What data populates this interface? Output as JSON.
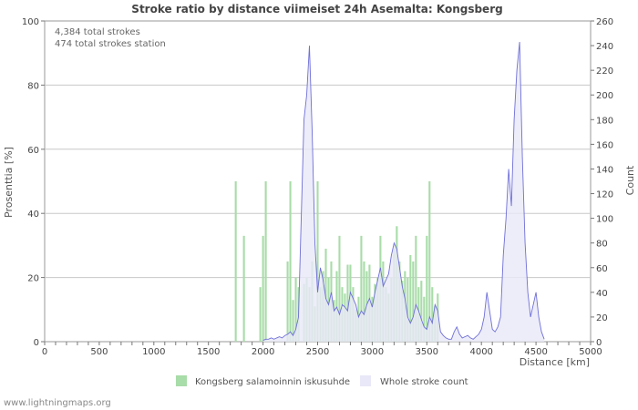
{
  "chart_data": {
    "type": "bar",
    "title": "Stroke ratio by distance viimeiset 24h Asemalta: Kongsberg",
    "info_lines": [
      "4,384 total strokes",
      "474 total strokes station"
    ],
    "xlabel": "Distance   [km]",
    "ylabel_left": "Prosenttia   [%]",
    "ylabel_right": "Count",
    "xlim": [
      0,
      5000
    ],
    "ylim_left": [
      0,
      100
    ],
    "ylim_right": [
      0,
      260
    ],
    "x_ticks": [
      0,
      500,
      1000,
      1500,
      2000,
      2500,
      3000,
      3500,
      4000,
      4500,
      5000
    ],
    "y_ticks_left": [
      0,
      20,
      40,
      60,
      80,
      100
    ],
    "y_ticks_right": [
      0,
      20,
      40,
      60,
      80,
      100,
      120,
      140,
      160,
      180,
      200,
      220,
      240,
      260
    ],
    "bin_width_km": 25,
    "series": [
      {
        "name": "Kongsberg salamoinnin iskusuhde",
        "axis": "left",
        "kind": "bar",
        "color": "#a8dca8",
        "x": [
          1750,
          1825,
          1975,
          2000,
          2025,
          2225,
          2250,
          2275,
          2300,
          2325,
          2375,
          2400,
          2425,
          2450,
          2475,
          2500,
          2525,
          2550,
          2575,
          2600,
          2625,
          2650,
          2675,
          2700,
          2725,
          2750,
          2775,
          2800,
          2825,
          2850,
          2875,
          2900,
          2925,
          2950,
          2975,
          3000,
          3025,
          3050,
          3075,
          3100,
          3125,
          3150,
          3175,
          3200,
          3225,
          3250,
          3275,
          3300,
          3325,
          3350,
          3375,
          3400,
          3425,
          3450,
          3475,
          3500,
          3525,
          3550,
          3575,
          3600
        ],
        "values": [
          50,
          33,
          17,
          33,
          50,
          25,
          50,
          13,
          20,
          17,
          18,
          20,
          17,
          25,
          11,
          50,
          17,
          22,
          29,
          20,
          25,
          13,
          22,
          33,
          17,
          15,
          24,
          24,
          17,
          10,
          14,
          33,
          25,
          22,
          24,
          14,
          18,
          20,
          33,
          25,
          17,
          15,
          20,
          29,
          36,
          25,
          19,
          22,
          20,
          27,
          25,
          33,
          17,
          19,
          14,
          33,
          50,
          17,
          11,
          15
        ]
      },
      {
        "name": "Whole stroke count",
        "axis": "right",
        "kind": "area",
        "color": "#6f6fd8",
        "fill": "#e8e8f8",
        "x": [
          2000,
          2025,
          2050,
          2075,
          2100,
          2125,
          2150,
          2175,
          2200,
          2225,
          2250,
          2275,
          2300,
          2325,
          2350,
          2375,
          2400,
          2425,
          2450,
          2475,
          2500,
          2525,
          2550,
          2575,
          2600,
          2625,
          2650,
          2675,
          2700,
          2725,
          2750,
          2775,
          2800,
          2825,
          2850,
          2875,
          2900,
          2925,
          2950,
          2975,
          3000,
          3025,
          3050,
          3075,
          3100,
          3125,
          3150,
          3175,
          3200,
          3225,
          3250,
          3275,
          3300,
          3325,
          3350,
          3375,
          3400,
          3425,
          3450,
          3475,
          3500,
          3525,
          3550,
          3575,
          3600,
          3625,
          3650,
          3675,
          3700,
          3725,
          3750,
          3775,
          3800,
          3825,
          3850,
          3875,
          3900,
          3925,
          3950,
          3975,
          4000,
          4025,
          4050,
          4075,
          4100,
          4125,
          4150,
          4175,
          4200,
          4225,
          4250,
          4275,
          4300,
          4325,
          4350,
          4375,
          4400,
          4425,
          4450,
          4475,
          4500,
          4525,
          4550,
          4575
        ],
        "values": [
          1,
          2,
          2,
          3,
          2,
          3,
          4,
          3,
          5,
          6,
          8,
          5,
          10,
          20,
          100,
          180,
          200,
          240,
          170,
          80,
          40,
          60,
          50,
          35,
          30,
          40,
          25,
          28,
          22,
          30,
          28,
          25,
          40,
          35,
          30,
          20,
          25,
          22,
          30,
          35,
          28,
          40,
          50,
          60,
          45,
          50,
          55,
          70,
          80,
          75,
          60,
          45,
          35,
          20,
          15,
          20,
          30,
          25,
          18,
          12,
          10,
          20,
          15,
          30,
          25,
          8,
          5,
          3,
          2,
          2,
          8,
          12,
          6,
          3,
          4,
          5,
          3,
          2,
          4,
          6,
          10,
          20,
          40,
          25,
          10,
          8,
          12,
          20,
          70,
          100,
          140,
          110,
          180,
          220,
          243,
          150,
          80,
          40,
          20,
          30,
          40,
          20,
          8,
          2
        ]
      }
    ]
  },
  "footer": "www.lightningmaps.org"
}
